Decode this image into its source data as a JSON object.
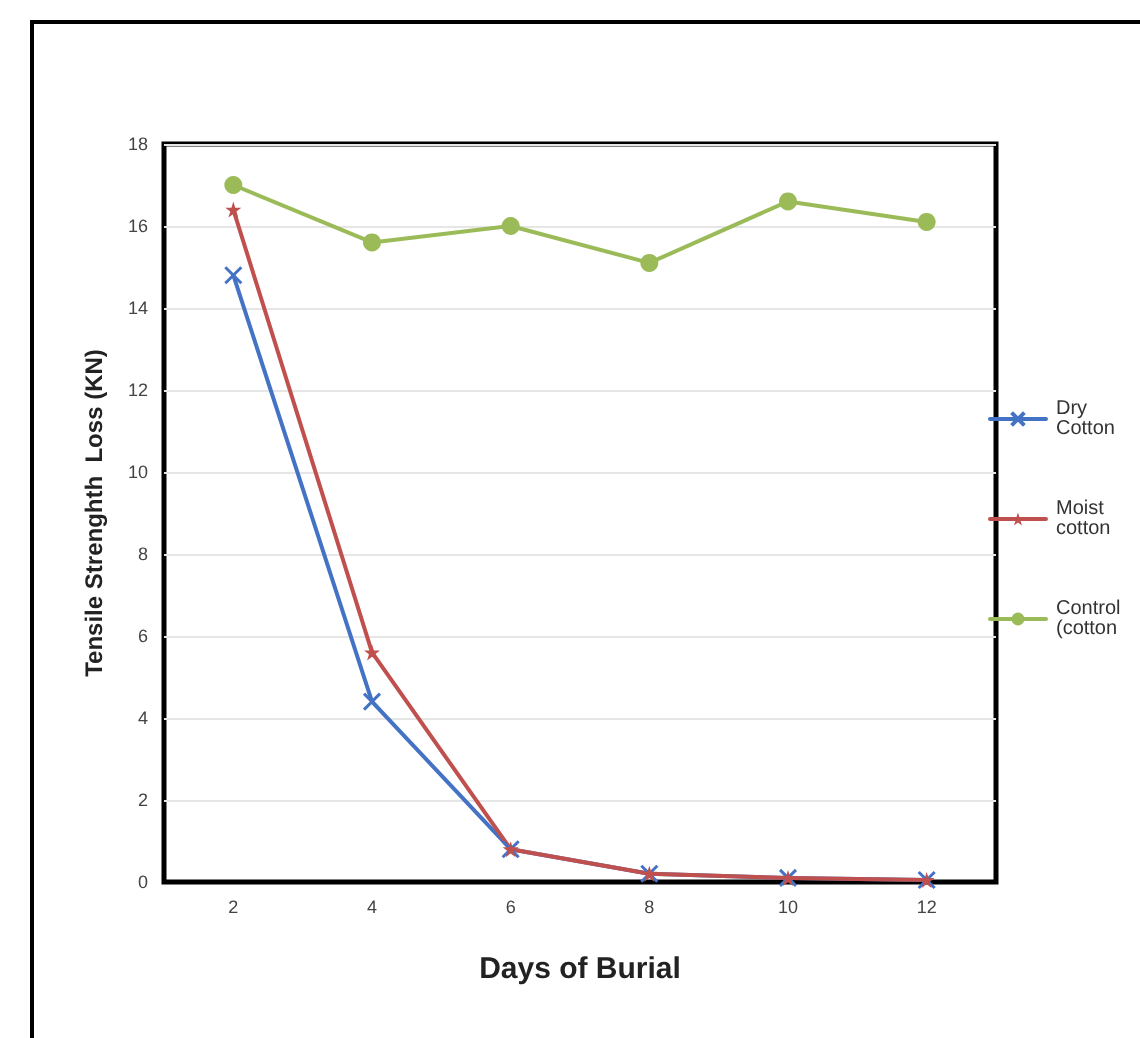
{
  "chart_data": {
    "type": "line",
    "xlabel": "Days of Burial",
    "ylabel": "Tensile Strenghth  Loss (KN)",
    "categories": [
      "2",
      "4",
      "6",
      "8",
      "10",
      "12"
    ],
    "series": [
      {
        "name": "Dry Cotton",
        "color": "#4472c4",
        "marker": "cross",
        "values": [
          14.8,
          4.4,
          0.8,
          0.2,
          0.1,
          0.05
        ]
      },
      {
        "name": "Moist cotton",
        "color": "#c0504d",
        "marker": "star",
        "values": [
          16.4,
          5.6,
          0.8,
          0.2,
          0.1,
          0.05
        ]
      },
      {
        "name": "Control (cotton",
        "color": "#9bbb59",
        "marker": "circle",
        "values": [
          17,
          15.6,
          16,
          15.1,
          16.6,
          16.1
        ]
      }
    ],
    "ylim": [
      0,
      18
    ],
    "yticks": [
      0,
      2,
      4,
      6,
      8,
      10,
      12,
      14,
      16,
      18
    ],
    "grid": "y",
    "legend": "right"
  }
}
